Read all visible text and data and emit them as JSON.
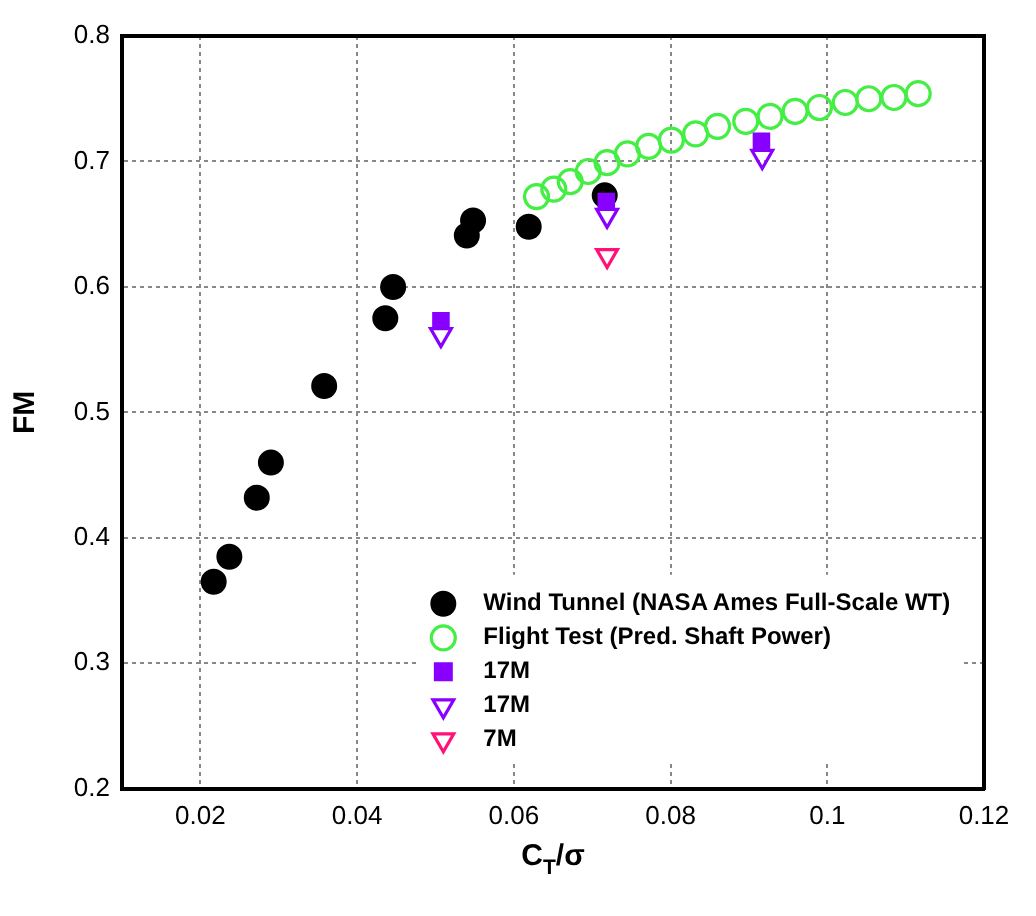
{
  "chart_data": {
    "type": "scatter",
    "xlabel": "C$_{T}$/σ",
    "ylabel": "FM",
    "xlim": [
      0.01,
      0.12
    ],
    "xticks": [
      0.02,
      0.04,
      0.06,
      0.08,
      0.1,
      0.12
    ],
    "ylim": [
      0.2,
      0.8
    ],
    "yticks": [
      0.2,
      0.3,
      0.4,
      0.5,
      0.6,
      0.7,
      0.8
    ],
    "grid": true,
    "legend": "bottom right",
    "series": [
      {
        "name": "Wind Tunnel (NASA Ames Full-Scale WT)",
        "color": "#000000",
        "marker": "circle",
        "x": [
          0.0217,
          0.0237,
          0.0272,
          0.029,
          0.0358,
          0.0436,
          0.0446,
          0.054,
          0.0548,
          0.0619,
          0.0716
        ],
        "values": [
          0.365,
          0.385,
          0.432,
          0.46,
          0.521,
          0.575,
          0.6,
          0.641,
          0.653,
          0.648,
          0.673
        ]
      },
      {
        "name": "Flight Test (Pred. Shaft Power)",
        "color": "#44ee44",
        "marker": "circle",
        "x": [
          0.0629,
          0.0651,
          0.0672,
          0.0695,
          0.0719,
          0.0745,
          0.0772,
          0.0801,
          0.0832,
          0.086,
          0.0896,
          0.0927,
          0.0959,
          0.099,
          0.1023,
          0.1053,
          0.1085,
          0.1116
        ],
        "values": [
          0.672,
          0.678,
          0.684,
          0.692,
          0.699,
          0.706,
          0.712,
          0.717,
          0.722,
          0.728,
          0.732,
          0.736,
          0.74,
          0.743,
          0.747,
          0.75,
          0.751,
          0.754
        ]
      },
      {
        "name": "17M",
        "color": "#8800ff",
        "marker": "square",
        "x": [
          0.0507,
          0.0718,
          0.0916
        ],
        "values": [
          0.573,
          0.668,
          0.716
        ]
      },
      {
        "name": "17M",
        "color": "#8800ff",
        "marker": "triangle",
        "x": [
          0.0507,
          0.0719,
          0.0917
        ],
        "values": [
          0.562,
          0.657,
          0.704
        ]
      },
      {
        "name": "7M",
        "color": "#ff1177",
        "marker": "triangle",
        "x": [
          0.0719
        ],
        "values": [
          0.625
        ]
      }
    ]
  }
}
